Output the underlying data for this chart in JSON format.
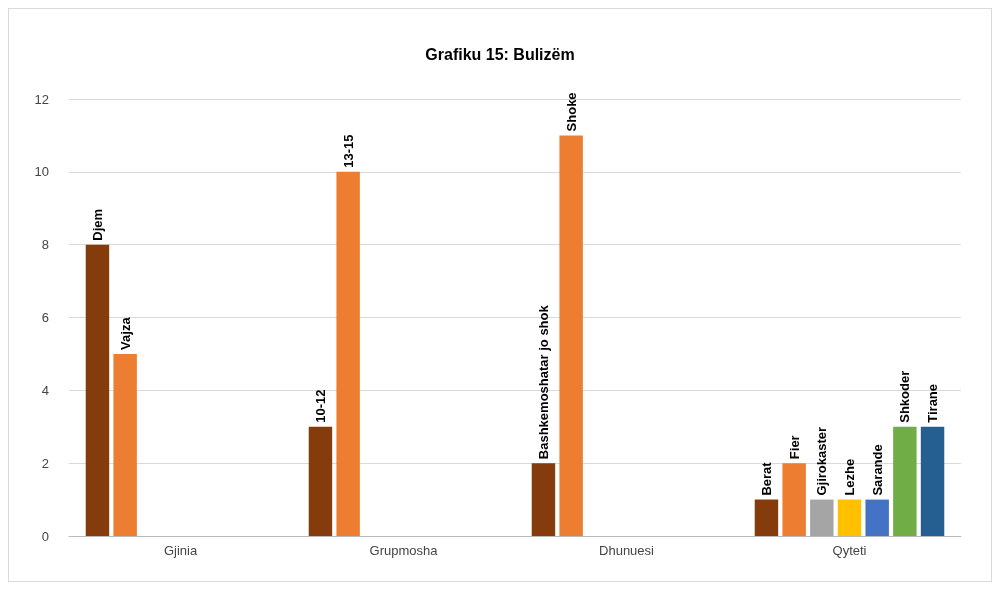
{
  "chart_data": {
    "type": "bar",
    "title": "Grafiku 15: Bulizëm",
    "categories": [
      "Gjinia",
      "Grupmosha",
      "Dhunuesi",
      "Qyteti"
    ],
    "series": [
      {
        "color": "#843c0c",
        "values": [
          8,
          3,
          2,
          1
        ],
        "value_labels": [
          "Djem",
          "10-12",
          "Bashkemoshatar jo shok",
          "Berat"
        ]
      },
      {
        "color": "#ed7d31",
        "values": [
          5,
          10,
          11,
          2
        ],
        "value_labels": [
          "Vajza",
          "13-15",
          "Shoke",
          "Fier"
        ]
      },
      {
        "color": "#a5a5a5",
        "values": [
          null,
          null,
          null,
          1
        ],
        "value_labels": [
          null,
          null,
          null,
          "Gjirokaster"
        ]
      },
      {
        "color": "#ffc000",
        "values": [
          null,
          null,
          null,
          1
        ],
        "value_labels": [
          null,
          null,
          null,
          "Lezhe"
        ]
      },
      {
        "color": "#4472c4",
        "values": [
          null,
          null,
          null,
          1
        ],
        "value_labels": [
          null,
          null,
          null,
          "Sarande"
        ]
      },
      {
        "color": "#70ad47",
        "values": [
          null,
          null,
          null,
          3
        ],
        "value_labels": [
          null,
          null,
          null,
          "Shkoder"
        ]
      },
      {
        "color": "#255e91",
        "values": [
          null,
          null,
          null,
          3
        ],
        "value_labels": [
          null,
          null,
          null,
          "Tirane"
        ]
      }
    ],
    "ylim": [
      0,
      12
    ],
    "yticks": [
      0,
      2,
      4,
      6,
      8,
      10,
      12
    ],
    "grid": "y"
  }
}
